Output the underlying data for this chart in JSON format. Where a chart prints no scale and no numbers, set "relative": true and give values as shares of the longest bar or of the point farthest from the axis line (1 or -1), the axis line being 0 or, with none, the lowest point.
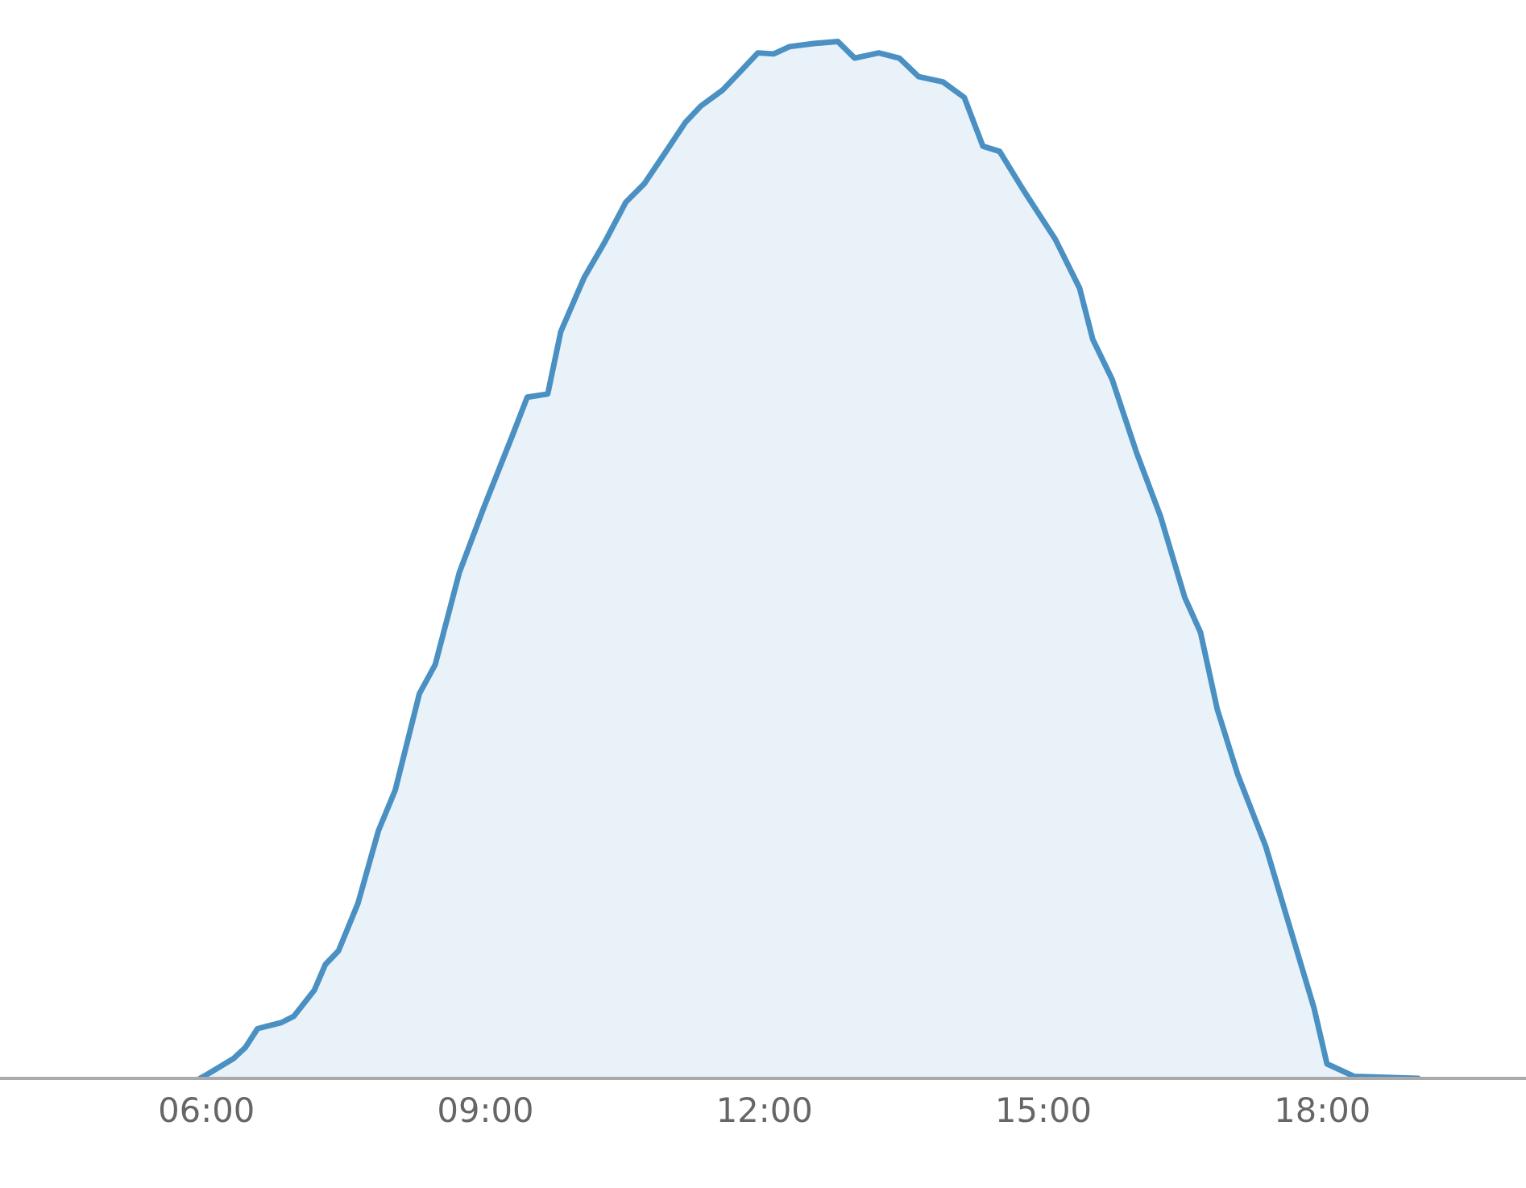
{
  "chart_data": {
    "type": "area",
    "relative": true,
    "color": "#4a90c2",
    "xlim": [
      3.78,
      20.19
    ],
    "xticks": [
      {
        "value": 6,
        "label": "06:00"
      },
      {
        "value": 9,
        "label": "09:00"
      },
      {
        "value": 12,
        "label": "12:00"
      },
      {
        "value": 15,
        "label": "15:00"
      },
      {
        "value": 18,
        "label": "18:00"
      }
    ],
    "tick_labels": "x",
    "x": [
      5.93,
      6.03,
      6.29,
      6.42,
      6.55,
      6.81,
      6.94,
      7.16,
      7.28,
      7.42,
      7.63,
      7.85,
      8.03,
      8.29,
      8.46,
      8.72,
      8.98,
      9.29,
      9.45,
      9.67,
      9.81,
      10.06,
      10.28,
      10.51,
      10.71,
      10.92,
      11.15,
      11.32,
      11.55,
      11.72,
      11.93,
      12.1,
      12.27,
      12.53,
      12.79,
      12.97,
      13.23,
      13.45,
      13.66,
      13.92,
      14.15,
      14.35,
      14.53,
      14.79,
      15.13,
      15.39,
      15.53,
      15.74,
      16.0,
      16.26,
      16.52,
      16.69,
      16.87,
      17.09,
      17.39,
      17.65,
      17.91,
      18.05,
      18.34,
      19.03
    ],
    "values": [
      0,
      0.005,
      0.019,
      0.03,
      0.048,
      0.054,
      0.06,
      0.085,
      0.11,
      0.123,
      0.169,
      0.239,
      0.278,
      0.371,
      0.399,
      0.488,
      0.55,
      0.62,
      0.657,
      0.66,
      0.72,
      0.772,
      0.806,
      0.845,
      0.863,
      0.891,
      0.922,
      0.938,
      0.953,
      0.969,
      0.989,
      0.988,
      0.995,
      0.998,
      1.0,
      0.984,
      0.989,
      0.984,
      0.966,
      0.961,
      0.946,
      0.899,
      0.894,
      0.856,
      0.809,
      0.762,
      0.713,
      0.674,
      0.604,
      0.542,
      0.464,
      0.43,
      0.356,
      0.293,
      0.224,
      0.146,
      0.068,
      0.014,
      0.002,
      0
    ]
  }
}
